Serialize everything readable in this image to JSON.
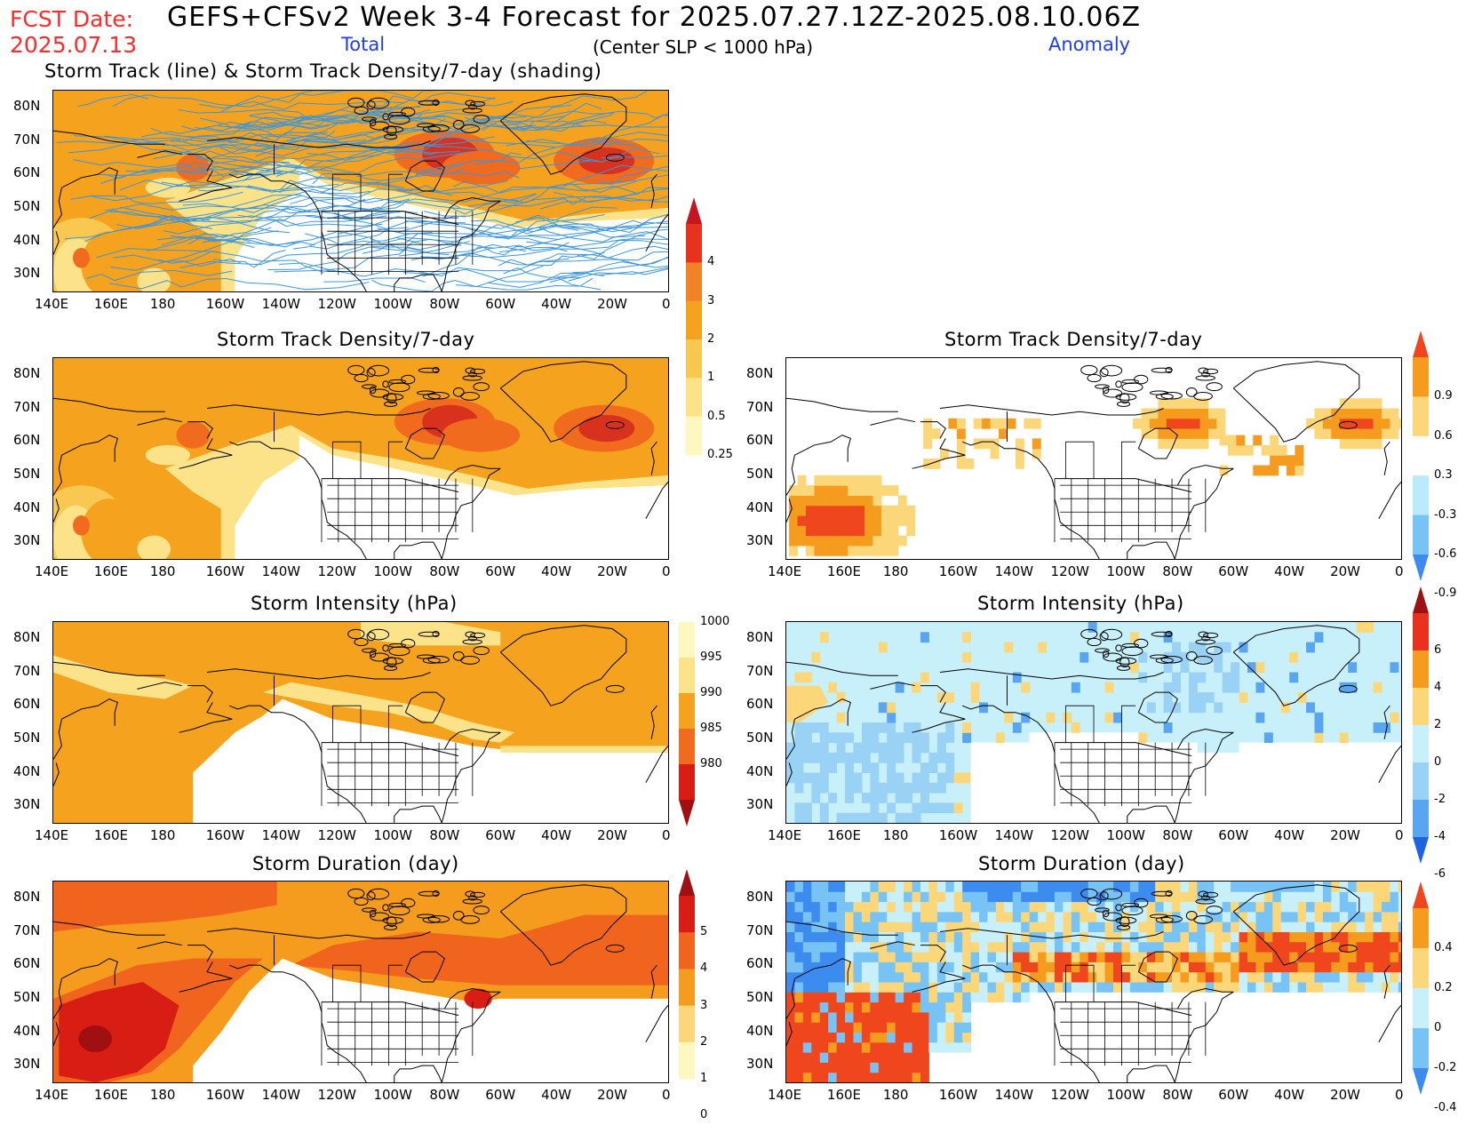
{
  "header": {
    "fcst_label": "FCST Date:",
    "fcst_date": "2025.07.13",
    "title": "GEFS+CFSv2 Week 3-4 Forecast for 2025.07.27.12Z-2025.08.10.06Z",
    "total_label": "Total",
    "center_note": "(Center SLP < 1000 hPa)",
    "anomaly_label": "Anomaly"
  },
  "axes": {
    "lat_labels": [
      "80N",
      "70N",
      "60N",
      "50N",
      "40N",
      "30N"
    ],
    "lon_labels": [
      "140E",
      "160E",
      "180",
      "160W",
      "140W",
      "120W",
      "100W",
      "80W",
      "60W",
      "40W",
      "20W",
      "0"
    ]
  },
  "panels": {
    "track": {
      "title": "Storm Track (line) & Storm Track Density/7-day (shading)"
    },
    "density_total": {
      "title": "Storm Track Density/7-day"
    },
    "density_anom": {
      "title": "Storm Track Density/7-day"
    },
    "intensity_total": {
      "title": "Storm Intensity (hPa)"
    },
    "intensity_anom": {
      "title": "Storm Intensity (hPa)"
    },
    "duration_total": {
      "title": "Storm Duration (day)"
    },
    "duration_anom": {
      "title": "Storm Duration (day)"
    }
  },
  "colorbars": {
    "density_total": {
      "labels": [
        "4",
        "3",
        "2",
        "1",
        "0.5",
        "0.25"
      ],
      "colors": [
        "#c8141e",
        "#e8321e",
        "#f08228",
        "#f5a21e",
        "#f8c850",
        "#fce38a",
        "#fff7c0"
      ]
    },
    "density_anom": {
      "labels": [
        "0.9",
        "0.6",
        "0.3",
        "-0.3",
        "-0.6",
        "-0.9"
      ],
      "colors": [
        "#f0461e",
        "#f59b1e",
        "#fcd77a",
        "#ffffff",
        "#b9ebfa",
        "#78c3f5",
        "#3c8cf0"
      ]
    },
    "intensity_total": {
      "labels": [
        "1000",
        "995",
        "990",
        "985",
        "980"
      ],
      "colors": [
        "#fff7c0",
        "#fce38a",
        "#f5a21e",
        "#f06b1e",
        "#d81e14",
        "#a01010"
      ]
    },
    "intensity_anom": {
      "labels": [
        "6",
        "4",
        "2",
        "0",
        "-2",
        "-4",
        "-6"
      ],
      "colors": [
        "#a01010",
        "#e8321e",
        "#f59b1e",
        "#fcd77a",
        "#c8f0fa",
        "#9ad2f5",
        "#5aa5f0",
        "#1e64dc"
      ]
    },
    "duration_total": {
      "labels": [
        "5",
        "4",
        "3",
        "2",
        "1",
        "0"
      ],
      "colors": [
        "#a01010",
        "#d81e14",
        "#f0641e",
        "#f59b1e",
        "#fcd77a",
        "#fff7c0"
      ]
    },
    "duration_anom": {
      "labels": [
        "0.4",
        "0.2",
        "0",
        "-0.2",
        "-0.4"
      ],
      "colors": [
        "#f0461e",
        "#f59b1e",
        "#fcd77a",
        "#c8f0fa",
        "#78c3f5",
        "#3c8cf0"
      ]
    }
  }
}
